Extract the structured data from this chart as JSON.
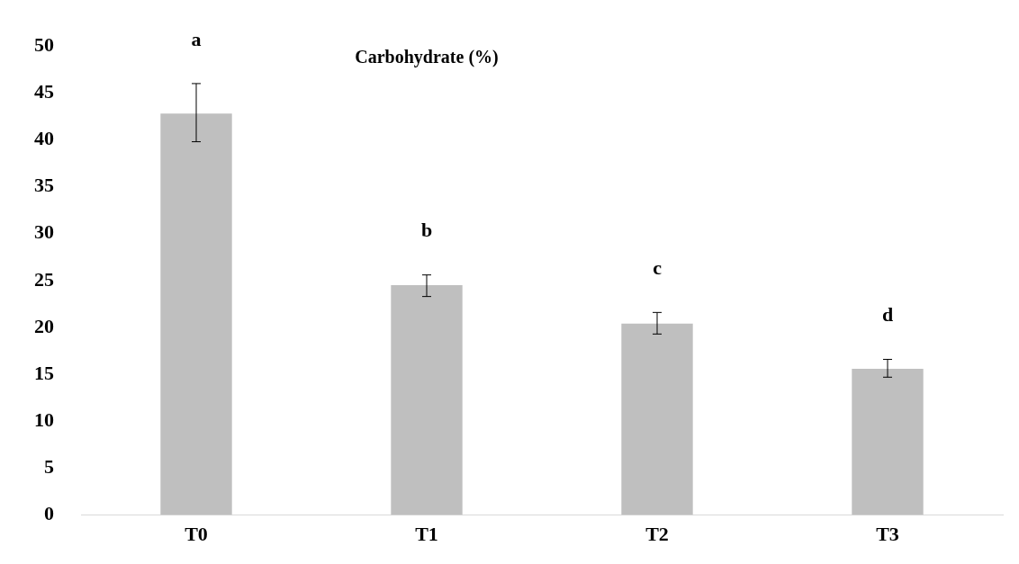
{
  "chart_data": {
    "type": "bar",
    "title": "Carbohydrate (%)",
    "categories": [
      "T0",
      "T1",
      "T2",
      "T3"
    ],
    "values": [
      42.8,
      24.5,
      20.4,
      15.6
    ],
    "errors": [
      [
        39.8,
        46.0
      ],
      [
        23.3,
        25.6
      ],
      [
        19.3,
        21.6
      ],
      [
        14.7,
        16.6
      ]
    ],
    "color": "#bfbfbf",
    "ylim": [
      0,
      50
    ],
    "yticks": [
      0,
      5,
      10,
      15,
      20,
      25,
      30,
      35,
      40,
      45,
      50
    ],
    "grid": false,
    "annotations": [
      "a",
      "b",
      "c",
      "d"
    ]
  }
}
